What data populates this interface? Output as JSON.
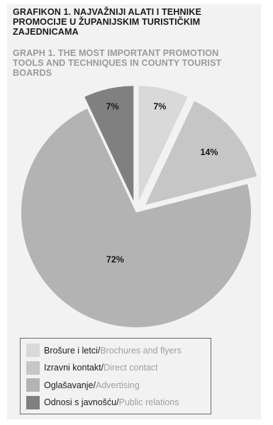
{
  "header": {
    "title_hr_lines": [
      "GRAFIKON 1. NAJVAŽNIJI ALATI I TEHNIKE",
      "PROMOCIJE U ŽUPANIJSKIM TURISTIČKIM",
      "ZAJEDNICAMA"
    ],
    "title_en_lines": [
      "GRAPH 1. THE MOST IMPORTANT PROMOTION",
      "TOOLS AND TECHNIQUES IN COUNTY TOURIST",
      "BOARDS"
    ]
  },
  "chart_data": {
    "type": "pie",
    "title": "GRAFIKON 1. NAJVAŽNIJI ALATI I TEHNIKE PROMOCIJE U ŽUPANIJSKIM TURISTIČKIM ZAJEDNICAMA",
    "subtitle": "GRAPH 1. THE MOST IMPORTANT PROMOTION TOOLS AND TECHNIQUES IN COUNTY TOURIST BOARDS",
    "legend_position": "bottom-left",
    "slices": [
      {
        "label_hr": "Brošure i letci",
        "label_en": "Brochures and flyers",
        "value": 7,
        "data_label": "7%",
        "color": "#d9d9d9",
        "exploded": true
      },
      {
        "label_hr": "Izravni kontakt",
        "label_en": "Direct contact",
        "value": 14,
        "data_label": "14%",
        "color": "#c6c6c6",
        "exploded": true
      },
      {
        "label_hr": "Oglašavanje",
        "label_en": "Advertising",
        "value": 72,
        "data_label": "72%",
        "color": "#b3b3b3",
        "exploded": false
      },
      {
        "label_hr": "Odnosi s javnošću",
        "label_en": "Public relations",
        "value": 7,
        "data_label": "7%",
        "color": "#808080",
        "exploded": true
      }
    ],
    "separator": " / "
  }
}
